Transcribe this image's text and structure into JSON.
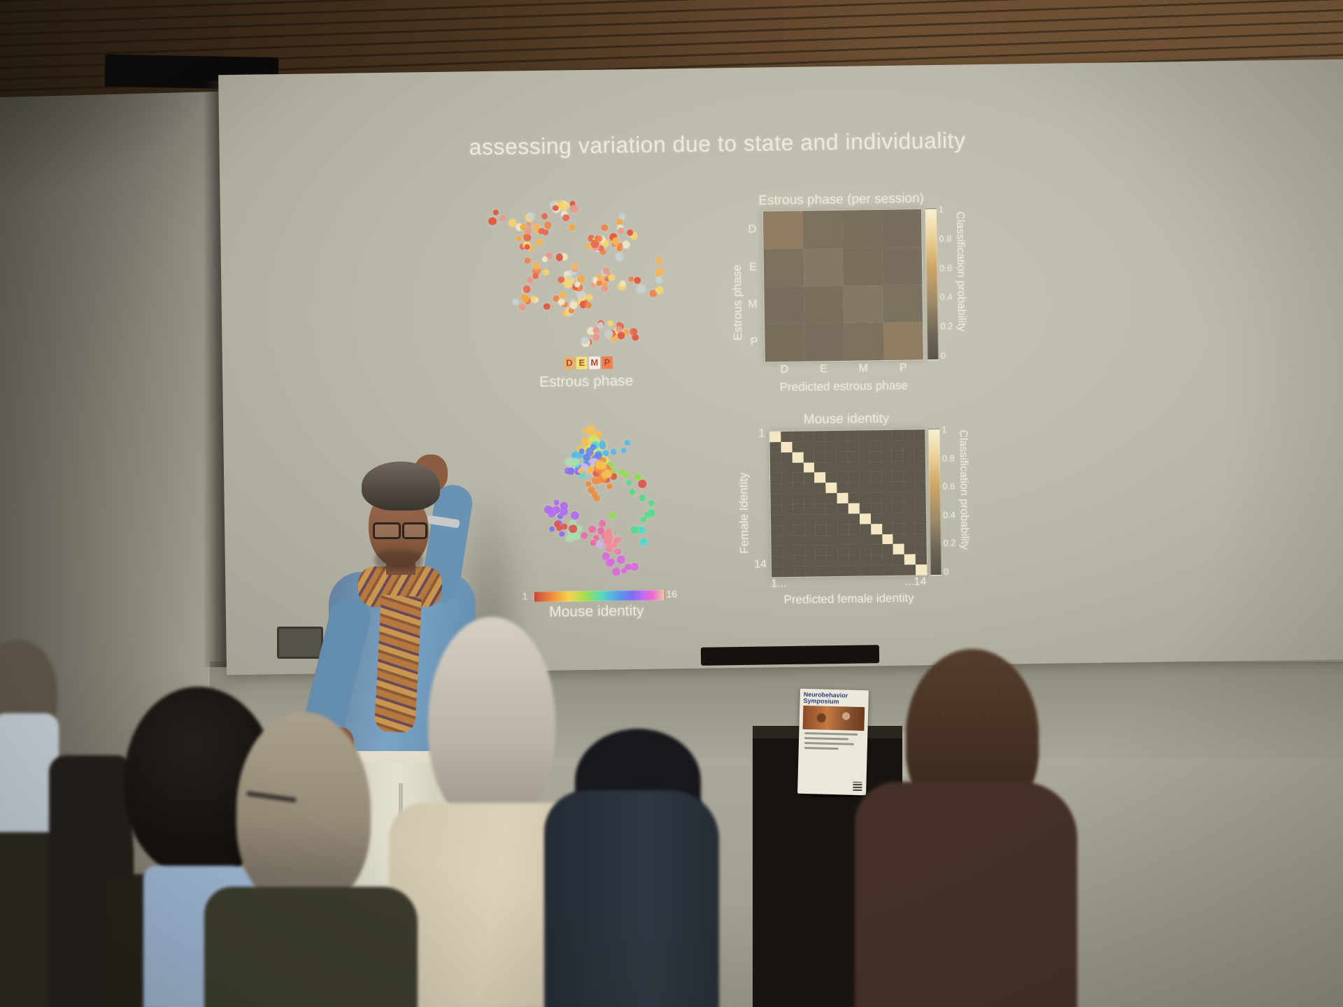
{
  "scene": {
    "type": "photograph",
    "setting": "speaker presenting a neuroscience slide to a seated audience in a conference room"
  },
  "slide": {
    "title": "assessing variation due to state and individuality",
    "umap_estrous": {
      "caption": "Estrous phase",
      "legend": [
        "D",
        "E",
        "M",
        "P"
      ],
      "legend_colors": [
        "#e8b06a",
        "#f2e27a",
        "#f7ece4",
        "#ef8050"
      ],
      "legend_text_color": "#b44434"
    },
    "confusion_estrous": {
      "title": "Estrous phase (per session)",
      "ylabel": "Estrous phase",
      "xlabel": "Predicted estrous phase",
      "yticks": [
        "D",
        "E",
        "M",
        "P"
      ],
      "xticks": [
        "D",
        "E",
        "M",
        "P"
      ],
      "colorbar_label": "Classification probability",
      "colorbar_ticks": [
        "1",
        "0.8",
        "0.6",
        "0.4",
        "0.2",
        "0"
      ]
    },
    "umap_mouse": {
      "caption": "Mouse identity",
      "colorbar_min": "1",
      "colorbar_max": "16"
    },
    "confusion_mouse": {
      "title": "Mouse identity",
      "ylabel": "Female Identity",
      "xlabel": "Predicted female identity",
      "yticks": [
        "1",
        "14"
      ],
      "xticks": [
        "1...",
        "...14"
      ],
      "colorbar_label": "Classification probability",
      "colorbar_ticks": [
        "1",
        "0.8",
        "0.6",
        "0.4",
        "0.2",
        "0"
      ]
    }
  },
  "poster": {
    "title": "Neurobehavior Symposium"
  },
  "chart_data": [
    {
      "type": "scatter",
      "title": "Estrous phase",
      "description": "2D embedding (UMAP-like) of sessions colored by estrous phase; warm orange/yellow/red dots with a few pale blue-grey dots",
      "legend": [
        "D",
        "E",
        "M",
        "P"
      ],
      "palette": [
        "#e4573b",
        "#ef8549",
        "#f3a93e",
        "#f6d56e",
        "#f0e6c8",
        "#c7d2d4",
        "#e86a50",
        "#f2b65e",
        "#e89a8a"
      ]
    },
    {
      "type": "heatmap",
      "title": "Estrous phase (per session)",
      "xlabel": "Predicted estrous phase",
      "ylabel": "Estrous phase",
      "categories": [
        "D",
        "E",
        "M",
        "P"
      ],
      "values": [
        [
          0.42,
          0.3,
          0.28,
          0.27
        ],
        [
          0.3,
          0.38,
          0.28,
          0.27
        ],
        [
          0.27,
          0.28,
          0.38,
          0.3
        ],
        [
          0.26,
          0.27,
          0.3,
          0.42
        ]
      ],
      "colorbar": {
        "label": "Classification probability",
        "range": [
          0,
          1
        ]
      },
      "note": "low-contrast matrix; only weak diagonal structure"
    },
    {
      "type": "scatter",
      "title": "Mouse identity",
      "description": "same embedding colored by mouse identity 1-16; locally coherent multicolor clusters",
      "colorbar": {
        "range": [
          1,
          16
        ]
      },
      "palette": [
        "#e0564e",
        "#ef8c3a",
        "#f3c04f",
        "#d9e05a",
        "#93dc52",
        "#5ad98e",
        "#57d8cc",
        "#58b9e8",
        "#6a86ec",
        "#8a70f0",
        "#b06cf0",
        "#da6ade",
        "#ef6aa8",
        "#f08a96",
        "#c9b8f0",
        "#a8ddb0"
      ]
    },
    {
      "type": "heatmap",
      "title": "Mouse identity",
      "xlabel": "Predicted female identity",
      "ylabel": "Female Identity",
      "n": 14,
      "diagonal": 0.97,
      "off_diagonal": 0.015,
      "categories_range": [
        "1",
        "14"
      ],
      "colorbar": {
        "label": "Classification probability",
        "range": [
          0,
          1
        ]
      },
      "note": "near-perfect bright diagonal: individual identity is decoded reliably"
    }
  ]
}
